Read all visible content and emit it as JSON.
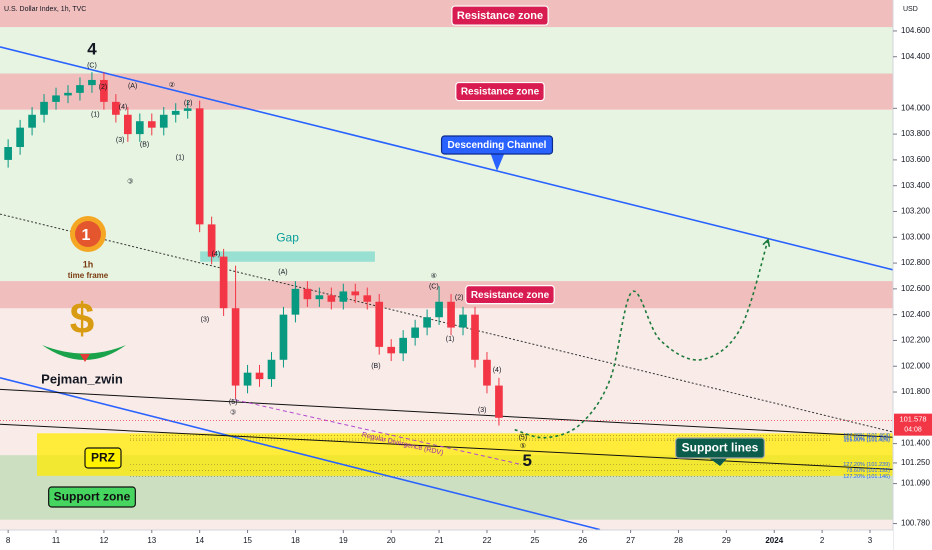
{
  "chart_data": {
    "type": "candlestick",
    "title": "U.S. Dollar Index, 1h, TVC",
    "currency": "USD",
    "author": "Pejman_zwin",
    "badge": [
      "1h",
      "time frame"
    ],
    "xlim": [
      -0.17,
      18.48
    ],
    "ylim": [
      100.73,
      104.84
    ],
    "xticks": [
      {
        "value": 0,
        "label": "8"
      },
      {
        "value": 1,
        "label": "11"
      },
      {
        "value": 2,
        "label": "12"
      },
      {
        "value": 3,
        "label": "13"
      },
      {
        "value": 4,
        "label": "14"
      },
      {
        "value": 5,
        "label": "15"
      },
      {
        "value": 6,
        "label": "18"
      },
      {
        "value": 7,
        "label": "19"
      },
      {
        "value": 8,
        "label": "20"
      },
      {
        "value": 9,
        "label": "21"
      },
      {
        "value": 10,
        "label": "22"
      },
      {
        "value": 11,
        "label": "25"
      },
      {
        "value": 12,
        "label": "26"
      },
      {
        "value": 13,
        "label": "27"
      },
      {
        "value": 14,
        "label": "28"
      },
      {
        "value": 15,
        "label": "29"
      },
      {
        "value": 16,
        "label": "2024"
      },
      {
        "value": 17,
        "label": "2"
      },
      {
        "value": 18,
        "label": "3"
      }
    ],
    "yticks": [
      {
        "value": 104.6,
        "label": "104.600"
      },
      {
        "value": 104.4,
        "label": "104.400"
      },
      {
        "value": 104.0,
        "label": "104.000"
      },
      {
        "value": 103.8,
        "label": "103.800"
      },
      {
        "value": 103.6,
        "label": "103.600"
      },
      {
        "value": 103.4,
        "label": "103.400"
      },
      {
        "value": 103.2,
        "label": "103.200"
      },
      {
        "value": 103.0,
        "label": "103.000"
      },
      {
        "value": 102.8,
        "label": "102.800"
      },
      {
        "value": 102.6,
        "label": "102.600"
      },
      {
        "value": 102.4,
        "label": "102.400"
      },
      {
        "value": 102.2,
        "label": "102.200"
      },
      {
        "value": 102.0,
        "label": "102.000"
      },
      {
        "value": 101.8,
        "label": "101.800"
      },
      {
        "value": 101.4,
        "label": "101.400"
      },
      {
        "value": 101.25,
        "label": "101.250"
      },
      {
        "value": 101.09,
        "label": "101.090"
      },
      {
        "value": 100.78,
        "label": "100.780"
      }
    ],
    "last_price": 101.578,
    "countdown": "04:08",
    "up_color": "#089981",
    "down_color": "#f23645",
    "x": [
      0,
      0.25,
      0.5,
      0.75,
      1,
      1.25,
      1.5,
      1.75,
      2,
      2.25,
      2.5,
      2.75,
      3,
      3.25,
      3.5,
      3.75,
      4,
      4.25,
      4.5,
      4.75,
      5,
      5.25,
      5.5,
      5.75,
      6,
      6.25,
      6.5,
      6.75,
      7,
      7.25,
      7.5,
      7.75,
      8,
      8.25,
      8.5,
      8.75,
      9,
      9.25,
      9.5,
      9.75,
      10,
      10.25
    ],
    "open": [
      103.6,
      103.7,
      103.85,
      103.95,
      104.05,
      104.1,
      104.12,
      104.18,
      104.22,
      104.05,
      103.95,
      103.8,
      103.9,
      103.85,
      103.95,
      103.98,
      104.0,
      103.1,
      102.85,
      102.45,
      101.85,
      101.95,
      101.9,
      102.05,
      102.4,
      102.6,
      102.52,
      102.55,
      102.5,
      102.58,
      102.55,
      102.5,
      102.15,
      102.1,
      102.22,
      102.3,
      102.38,
      102.5,
      102.3,
      102.4,
      102.05,
      101.85
    ],
    "high": [
      103.76,
      103.91,
      104.01,
      104.11,
      104.16,
      104.18,
      104.24,
      104.28,
      104.28,
      104.11,
      104.01,
      103.96,
      103.96,
      104.01,
      104.04,
      104.06,
      104.06,
      103.16,
      102.91,
      102.78,
      102.01,
      102.01,
      102.11,
      102.46,
      102.66,
      102.66,
      102.61,
      102.61,
      102.64,
      102.64,
      102.61,
      102.56,
      102.21,
      102.28,
      102.36,
      102.44,
      102.62,
      102.56,
      102.46,
      102.46,
      102.11,
      101.91
    ],
    "low": [
      103.54,
      103.64,
      103.79,
      103.89,
      103.99,
      104.04,
      104.06,
      104.12,
      103.99,
      103.89,
      103.74,
      103.74,
      103.79,
      103.79,
      103.89,
      103.92,
      103.04,
      102.79,
      102.39,
      101.75,
      101.79,
      101.84,
      101.84,
      101.99,
      102.34,
      102.46,
      102.46,
      102.44,
      102.44,
      102.49,
      102.44,
      102.09,
      102.04,
      102.04,
      102.16,
      102.24,
      102.32,
      102.24,
      102.24,
      101.99,
      101.79,
      101.54
    ],
    "close": [
      103.7,
      103.85,
      103.95,
      104.05,
      104.1,
      104.12,
      104.18,
      104.22,
      104.05,
      103.95,
      103.8,
      103.9,
      103.85,
      103.95,
      103.98,
      104.0,
      103.1,
      102.85,
      102.45,
      101.85,
      101.95,
      101.9,
      102.05,
      102.4,
      102.6,
      102.52,
      102.55,
      102.5,
      102.58,
      102.55,
      102.5,
      102.15,
      102.1,
      102.22,
      102.3,
      102.38,
      102.5,
      102.3,
      102.4,
      102.05,
      101.85,
      101.6
    ],
    "resistance_zones": [
      {
        "label": "Resistance zone",
        "low": 104.63,
        "high": 104.84
      },
      {
        "label": "Resistance zone",
        "low": 103.99,
        "high": 104.27
      },
      {
        "label": "Resistance zone",
        "low": 102.45,
        "high": 102.66
      }
    ],
    "support_zone": {
      "label": "Support zone",
      "low": 100.81,
      "high": 101.31
    },
    "prz": {
      "label": "PRZ",
      "low": 101.15,
      "high": 101.48
    },
    "gap": {
      "label": "Gap",
      "x": [
        4.01,
        7.66
      ],
      "low": 102.81,
      "high": 102.89
    },
    "channel": {
      "label": "Descending Channel",
      "color": "#2962ff",
      "upper": {
        "x": [
          -0.17,
          18.48
        ],
        "y": [
          104.476,
          102.748
        ]
      },
      "lower": {
        "x": [
          -0.17,
          12.36
        ],
        "y": [
          101.91,
          100.733
        ]
      }
    },
    "trendline": {
      "x": [
        -0.17,
        18.48
      ],
      "y": [
        103.18,
        101.49
      ]
    },
    "support_lines": {
      "label": "Support lines",
      "lines": [
        {
          "x": [
            -0.17,
            18.48
          ],
          "y": [
            101.82,
            101.45
          ]
        },
        {
          "x": [
            -0.17,
            18.48
          ],
          "y": [
            101.55,
            101.2
          ]
        }
      ]
    },
    "divergence": {
      "label": "Regular Divergence (RDV)",
      "x": [
        4.74,
        10.69
      ],
      "y": [
        101.74,
        101.24
      ]
    },
    "projection": {
      "color": "#1b7a3a",
      "x": [
        10.58,
        11.21,
        11.94,
        12.57,
        13.03,
        13.61,
        14.45,
        15.28,
        15.87
      ],
      "y": [
        101.508,
        101.446,
        101.547,
        101.896,
        102.577,
        102.206,
        102.05,
        102.283,
        102.98
      ]
    },
    "fib_levels": [
      {
        "label": "127.20% (101.464)",
        "value": 101.464
      },
      {
        "label": "161.80% (101.436)",
        "value": 101.436
      },
      {
        "label": "115.00% (101.426)",
        "value": 101.426
      },
      {
        "label": "127.20% (101.239)",
        "value": 101.239
      },
      {
        "label": "78.60% (101.192)",
        "value": 101.192
      },
      {
        "label": "127.20% (101.146)",
        "value": 101.146
      }
    ],
    "wave_labels": [
      {
        "text": "4",
        "x": 1.75,
        "y": 104.453,
        "big": true
      },
      {
        "text": "(C)",
        "x": 1.75,
        "y": 104.33
      },
      {
        "text": "(2)",
        "x": 1.98,
        "y": 104.166
      },
      {
        "text": "(1)",
        "x": 1.82,
        "y": 103.95
      },
      {
        "text": "(4)",
        "x": 2.4,
        "y": 104.01
      },
      {
        "text": "(3)",
        "x": 2.34,
        "y": 103.755
      },
      {
        "text": "(A)",
        "x": 2.6,
        "y": 104.17
      },
      {
        "text": "(B)",
        "x": 2.85,
        "y": 103.72
      },
      {
        "text": "③",
        "x": 2.55,
        "y": 103.43
      },
      {
        "text": "②",
        "x": 3.42,
        "y": 104.18
      },
      {
        "text": "(2)",
        "x": 3.76,
        "y": 104.04
      },
      {
        "text": "(1)",
        "x": 3.59,
        "y": 103.616
      },
      {
        "text": "(4)",
        "x": 4.34,
        "y": 102.87
      },
      {
        "text": "(3)",
        "x": 4.11,
        "y": 102.36
      },
      {
        "text": "(5)",
        "x": 4.7,
        "y": 101.72
      },
      {
        "text": "③",
        "x": 4.7,
        "y": 101.64
      },
      {
        "text": "(A)",
        "x": 5.74,
        "y": 102.73
      },
      {
        "text": "(B)",
        "x": 7.68,
        "y": 102.0
      },
      {
        "text": "④",
        "x": 8.89,
        "y": 102.7
      },
      {
        "text": "(C)",
        "x": 8.89,
        "y": 102.616
      },
      {
        "text": "(2)",
        "x": 9.42,
        "y": 102.53
      },
      {
        "text": "(1)",
        "x": 9.23,
        "y": 102.21
      },
      {
        "text": "(4)",
        "x": 10.21,
        "y": 101.97
      },
      {
        "text": "(3)",
        "x": 9.9,
        "y": 101.66
      },
      {
        "text": "(5)",
        "x": 10.75,
        "y": 101.446
      },
      {
        "text": "⑤",
        "x": 10.75,
        "y": 101.38
      },
      {
        "text": "5",
        "x": 10.84,
        "y": 101.26,
        "big": true
      }
    ]
  }
}
